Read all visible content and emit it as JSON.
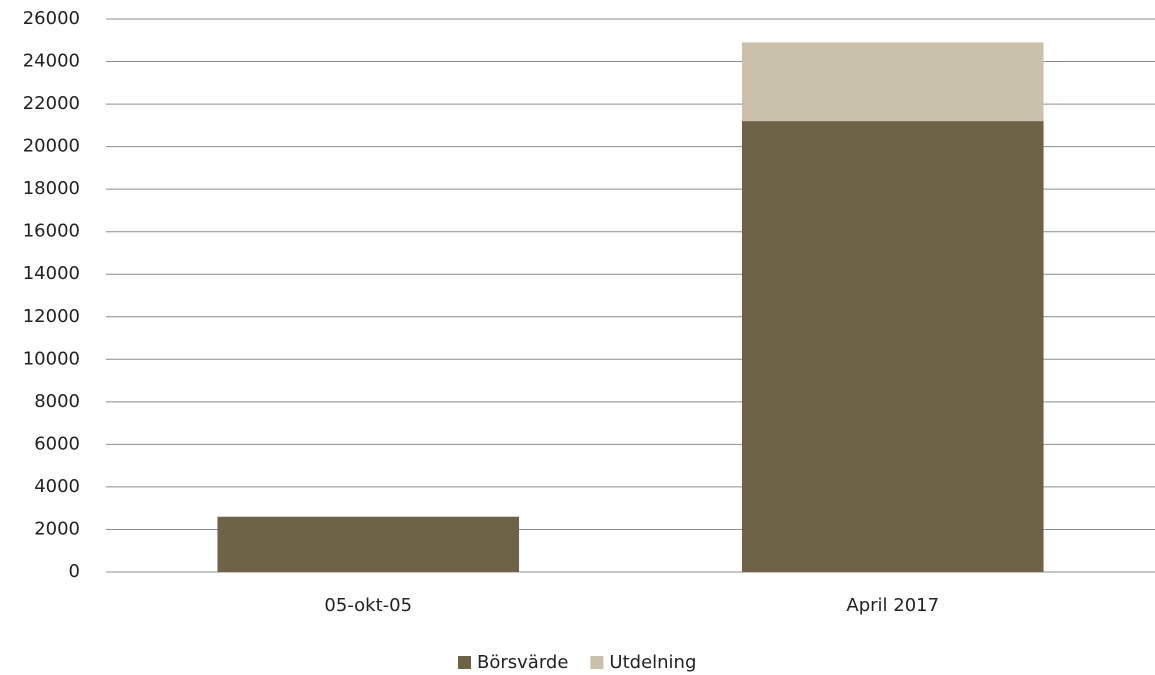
{
  "chart_data": {
    "type": "stacked_bar",
    "categories": [
      "05-okt-05",
      "April 2017"
    ],
    "series": [
      {
        "name": "Börsvärde",
        "color": "#6e6346",
        "values": [
          2600,
          21200
        ]
      },
      {
        "name": "Utdelning",
        "color": "#c9c1ab",
        "values": [
          0,
          3700
        ]
      }
    ],
    "ylim": [
      0,
      26000
    ],
    "yticks": [
      0,
      2000,
      4000,
      6000,
      8000,
      10000,
      12000,
      14000,
      16000,
      18000,
      20000,
      22000,
      24000,
      26000
    ],
    "grid": true,
    "legend": "bottom"
  }
}
